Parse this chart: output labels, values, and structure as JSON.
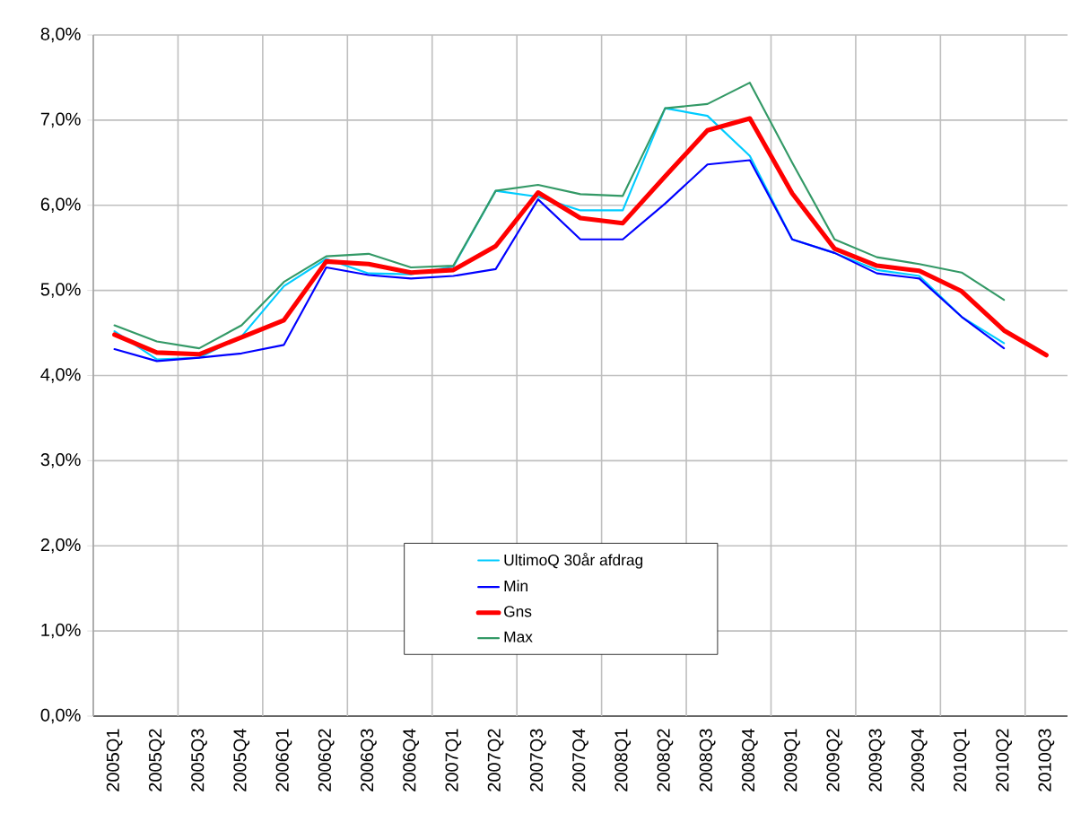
{
  "chart_data": {
    "type": "line",
    "categories": [
      "2005Q1",
      "2005Q2",
      "2005Q3",
      "2005Q4",
      "2006Q1",
      "2006Q2",
      "2006Q3",
      "2006Q4",
      "2007Q1",
      "2007Q2",
      "2007Q3",
      "2007Q4",
      "2008Q1",
      "2008Q2",
      "2008Q3",
      "2008Q4",
      "2009Q1",
      "2009Q2",
      "2009Q3",
      "2009Q4",
      "2010Q1",
      "2010Q2",
      "2010Q3"
    ],
    "series": [
      {
        "name": "UltimoQ 30år afdrag",
        "color": "#00ccff",
        "values": [
          4.52,
          4.19,
          4.21,
          4.46,
          5.05,
          5.37,
          5.2,
          5.19,
          5.28,
          6.17,
          6.1,
          5.94,
          5.94,
          7.14,
          7.05,
          6.58,
          5.6,
          5.44,
          5.24,
          5.17,
          4.69,
          4.38,
          null
        ]
      },
      {
        "name": "Min",
        "color": "#0000ff",
        "values": [
          4.31,
          4.17,
          4.21,
          4.26,
          4.36,
          5.27,
          5.18,
          5.14,
          5.17,
          5.25,
          6.07,
          5.6,
          5.6,
          6.02,
          6.48,
          6.53,
          5.6,
          5.44,
          5.2,
          5.14,
          4.69,
          4.32,
          null
        ]
      },
      {
        "name": "Gns",
        "color": "#ff0000",
        "values": [
          4.48,
          4.27,
          4.25,
          4.45,
          4.65,
          5.34,
          5.31,
          5.21,
          5.24,
          5.52,
          6.15,
          5.85,
          5.79,
          6.34,
          6.88,
          7.02,
          6.14,
          5.49,
          5.29,
          5.23,
          4.99,
          4.53,
          4.24
        ]
      },
      {
        "name": "Max",
        "color": "#339966",
        "values": [
          4.59,
          4.4,
          4.32,
          4.59,
          5.1,
          5.4,
          5.43,
          5.27,
          5.29,
          6.17,
          6.24,
          6.13,
          6.11,
          7.14,
          7.19,
          7.44,
          6.5,
          5.6,
          5.39,
          5.31,
          5.21,
          4.89,
          null
        ]
      }
    ],
    "ylim": [
      0,
      8
    ],
    "yticks": [
      {
        "value": 0,
        "label": "0,0%"
      },
      {
        "value": 1,
        "label": "1,0%"
      },
      {
        "value": 2,
        "label": "2,0%"
      },
      {
        "value": 3,
        "label": "3,0%"
      },
      {
        "value": 4,
        "label": "4,0%"
      },
      {
        "value": 5,
        "label": "5,0%"
      },
      {
        "value": 6,
        "label": "6,0%"
      },
      {
        "value": 7,
        "label": "7,0%"
      },
      {
        "value": 8,
        "label": "8,0%"
      }
    ],
    "grid": true,
    "legend": "bottom",
    "marker": "none",
    "line_style": "solid"
  }
}
